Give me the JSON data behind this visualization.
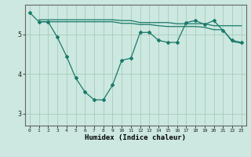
{
  "xlabel": "Humidex (Indice chaleur)",
  "ylabel": "",
  "bg_color": "#cce8e0",
  "line_color": "#1a7a6a",
  "grid_color": "#aaccbb",
  "xlim": [
    -0.5,
    23.5
  ],
  "ylim": [
    2.7,
    5.75
  ],
  "yticks": [
    3,
    4,
    5
  ],
  "xticks": [
    0,
    1,
    2,
    3,
    4,
    5,
    6,
    7,
    8,
    9,
    10,
    11,
    12,
    13,
    14,
    15,
    16,
    17,
    18,
    19,
    20,
    21,
    22,
    23
  ],
  "line1": {
    "x": [
      0,
      1,
      2,
      3,
      4,
      5,
      6,
      7,
      8,
      9,
      10,
      11,
      12,
      13,
      14,
      15,
      16,
      17,
      18,
      19,
      20,
      21,
      22,
      23
    ],
    "y": [
      5.55,
      5.32,
      5.32,
      4.93,
      4.45,
      3.9,
      3.55,
      3.35,
      3.35,
      3.72,
      4.35,
      4.4,
      5.05,
      5.05,
      4.85,
      4.8,
      4.8,
      5.3,
      5.35,
      5.25,
      5.35,
      5.1,
      4.85,
      4.8
    ]
  },
  "line2": {
    "x": [
      1,
      2,
      3,
      4,
      5,
      6,
      7,
      8,
      9,
      10,
      11,
      12,
      13,
      14,
      15,
      16,
      17,
      18,
      19,
      20,
      21,
      22,
      23
    ],
    "y": [
      5.37,
      5.37,
      5.37,
      5.37,
      5.37,
      5.37,
      5.37,
      5.37,
      5.37,
      5.35,
      5.35,
      5.3,
      5.3,
      5.3,
      5.3,
      5.27,
      5.27,
      5.27,
      5.27,
      5.22,
      5.22,
      5.22,
      5.22
    ]
  },
  "line3": {
    "x": [
      1,
      2,
      3,
      4,
      5,
      6,
      7,
      8,
      9,
      10,
      11,
      12,
      13,
      14,
      15,
      16,
      17,
      18,
      19,
      20,
      21,
      22,
      23
    ],
    "y": [
      5.32,
      5.32,
      5.32,
      5.32,
      5.32,
      5.32,
      5.32,
      5.32,
      5.32,
      5.28,
      5.28,
      5.25,
      5.25,
      5.22,
      5.2,
      5.2,
      5.2,
      5.2,
      5.18,
      5.12,
      5.12,
      4.82,
      4.78
    ]
  }
}
